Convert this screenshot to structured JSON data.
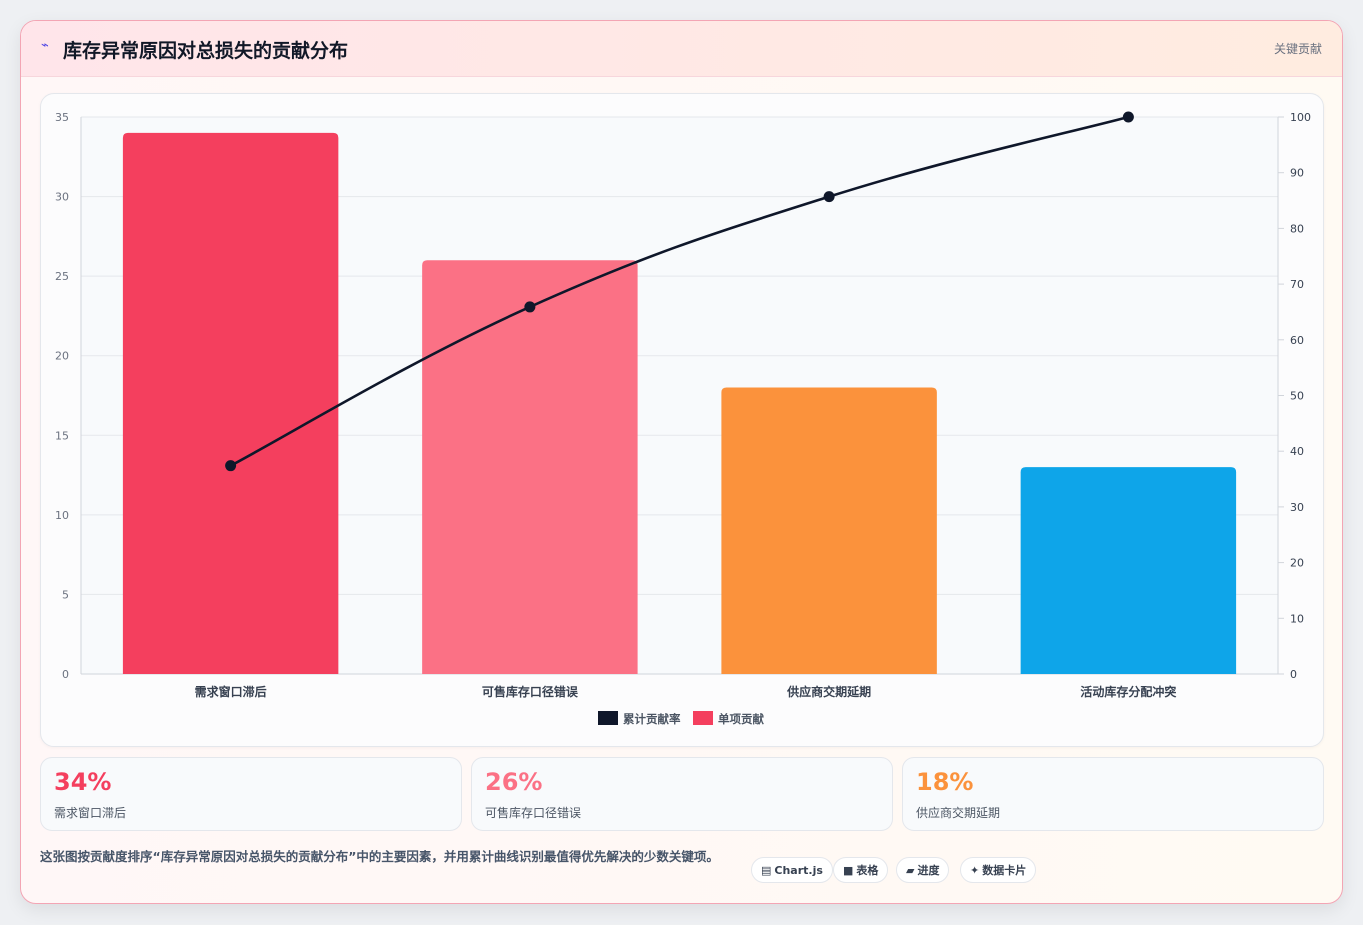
{
  "header": {
    "icon": "lightning-icon",
    "title": "库存异常原因对总损失的贡献分布",
    "badge": "关键贡献"
  },
  "chart_data": {
    "type": "bar",
    "categories": [
      "需求窗口滞后",
      "可售库存口径错误",
      "供应商交期延期",
      "活动库存分配冲突"
    ],
    "series": [
      {
        "name": "单项贡献",
        "type": "bar",
        "axis": "left",
        "values": [
          34,
          26,
          18,
          13
        ],
        "colors": [
          "#f43f5e",
          "#fb7185",
          "#fb923c",
          "#0ea5e9"
        ]
      },
      {
        "name": "累计贡献率",
        "type": "line",
        "axis": "right",
        "values": [
          37.4,
          65.9,
          85.7,
          100
        ],
        "color": "#0f172a"
      }
    ],
    "y_left": {
      "min": 0,
      "max": 35,
      "ticks": [
        0,
        5,
        10,
        15,
        20,
        25,
        30,
        35
      ]
    },
    "y_right": {
      "min": 0,
      "max": 100,
      "ticks": [
        0,
        10,
        20,
        30,
        40,
        50,
        60,
        70,
        80,
        90,
        100
      ]
    },
    "legend": {
      "position": "bottom",
      "items": [
        "累计贡献率",
        "单项贡献"
      ]
    },
    "grid": true
  },
  "stats": [
    {
      "value": "34%",
      "label": "需求窗口滞后",
      "color": "#f43f5e"
    },
    {
      "value": "26%",
      "label": "可售库存口径错误",
      "color": "#fb7185"
    },
    {
      "value": "18%",
      "label": "供应商交期延期",
      "color": "#fb923c"
    }
  ],
  "description": "这张图按贡献度排序“库存异常原因对总损失的贡献分布”中的主要因素，并用累计曲线识别最值得优先解决的少数关键项。",
  "pills": [
    {
      "icon": "▤",
      "label": "Chart.js"
    },
    {
      "icon": "■",
      "label": "表格"
    },
    {
      "icon": "▰",
      "label": "进度"
    },
    {
      "icon": "✦",
      "label": "数据卡片"
    }
  ]
}
